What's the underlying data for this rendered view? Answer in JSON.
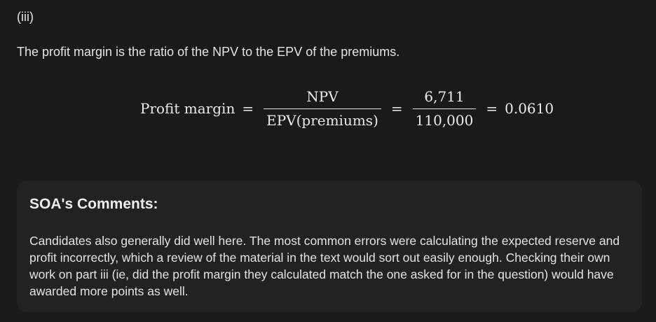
{
  "part_label": "(iii)",
  "intro_text": "The profit margin is the ratio of the NPV to the EPV of the premiums.",
  "equation": {
    "lhs": "Profit margin",
    "equals": "=",
    "frac1_numerator": "NPV",
    "frac1_denominator": "EPV(premiums)",
    "frac2_numerator": "6,711",
    "frac2_denominator": "110,000",
    "result": "0.0610"
  },
  "comments": {
    "title": "SOA's Comments:",
    "body": "Candidates also generally did well here. The most common errors were calculating the expected reserve and profit incorrectly, which a review of the material in the text would sort out easily enough. Checking their own work on part iii (ie, did the profit margin they calculated match the one asked for in the question) would have awarded more points as well."
  }
}
